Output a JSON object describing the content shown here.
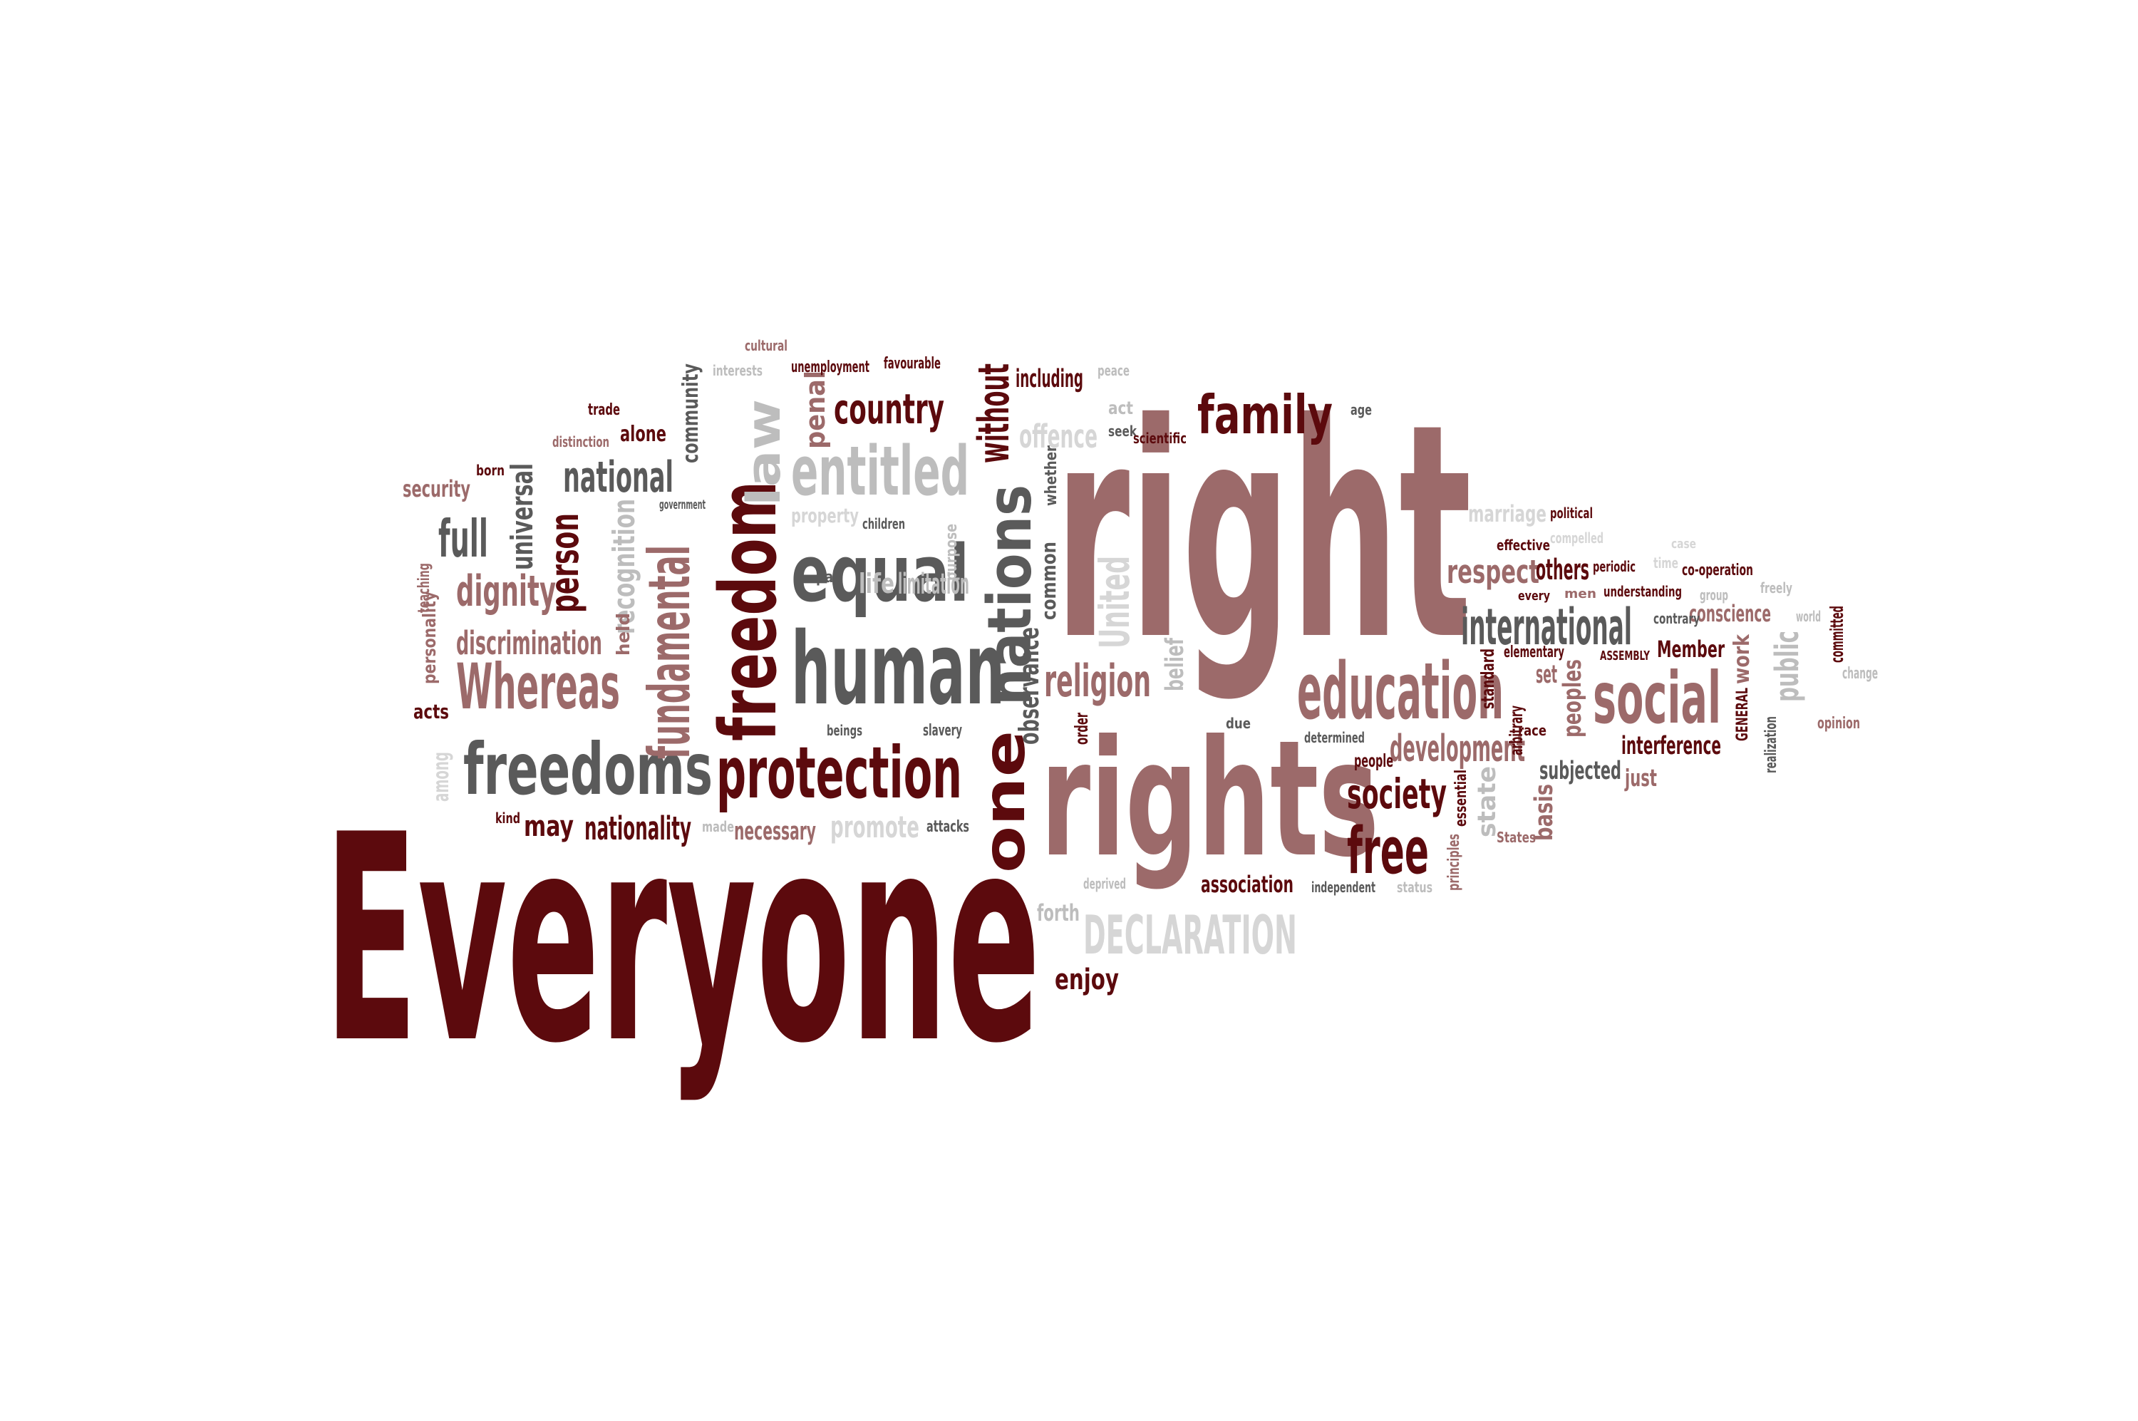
{
  "palette": {
    "background": "#ffffff",
    "dark_maroon": "#5c0a0d",
    "dark_gray": "#5a5a5a",
    "mauve": "#9c6a6a",
    "light_gray": "#bdbdbd",
    "pale_gray": "#d6d6d6"
  },
  "words": [
    {
      "text": "Everyone",
      "color": "dark_maroon"
    },
    {
      "text": "right",
      "color": "mauve"
    },
    {
      "text": "rights",
      "color": "mauve"
    },
    {
      "text": "human",
      "color": "dark_gray"
    },
    {
      "text": "protection",
      "color": "dark_maroon"
    },
    {
      "text": "freedoms",
      "color": "dark_gray"
    },
    {
      "text": "freedom",
      "color": "dark_maroon"
    },
    {
      "text": "equal",
      "color": "dark_gray"
    },
    {
      "text": "entitled",
      "color": "light_gray"
    },
    {
      "text": "education",
      "color": "mauve"
    },
    {
      "text": "social",
      "color": "mauve"
    },
    {
      "text": "Whereas",
      "color": "mauve"
    },
    {
      "text": "one",
      "color": "dark_maroon"
    },
    {
      "text": "nations",
      "color": "dark_gray"
    },
    {
      "text": "fundamental",
      "color": "mauve"
    },
    {
      "text": "law",
      "color": "light_gray"
    },
    {
      "text": "DECLARATION",
      "color": "pale_gray"
    },
    {
      "text": "free",
      "color": "dark_maroon"
    },
    {
      "text": "family",
      "color": "dark_maroon"
    },
    {
      "text": "international",
      "color": "dark_gray"
    },
    {
      "text": "country",
      "color": "dark_maroon"
    },
    {
      "text": "national",
      "color": "dark_gray"
    },
    {
      "text": "dignity",
      "color": "mauve"
    },
    {
      "text": "full",
      "color": "dark_gray"
    },
    {
      "text": "discrimination",
      "color": "mauve"
    },
    {
      "text": "person",
      "color": "dark_maroon"
    },
    {
      "text": "universal",
      "color": "dark_gray"
    },
    {
      "text": "recognition",
      "color": "light_gray"
    },
    {
      "text": "religion",
      "color": "mauve"
    },
    {
      "text": "society",
      "color": "dark_maroon"
    },
    {
      "text": "development",
      "color": "mauve"
    },
    {
      "text": "nationality",
      "color": "dark_maroon"
    },
    {
      "text": "necessary",
      "color": "mauve"
    },
    {
      "text": "promote",
      "color": "pale_gray"
    },
    {
      "text": "may",
      "color": "dark_maroon"
    },
    {
      "text": "without",
      "color": "dark_maroon"
    },
    {
      "text": "offence",
      "color": "pale_gray"
    },
    {
      "text": "including",
      "color": "dark_maroon"
    },
    {
      "text": "penal",
      "color": "mauve"
    },
    {
      "text": "community",
      "color": "dark_gray"
    },
    {
      "text": "United",
      "color": "pale_gray"
    },
    {
      "text": "observance",
      "color": "dark_gray"
    },
    {
      "text": "common",
      "color": "dark_gray"
    },
    {
      "text": "respect",
      "color": "mauve"
    },
    {
      "text": "others",
      "color": "dark_maroon"
    },
    {
      "text": "conscience",
      "color": "mauve"
    },
    {
      "text": "Member",
      "color": "dark_maroon"
    },
    {
      "text": "peoples",
      "color": "mauve"
    },
    {
      "text": "public",
      "color": "light_gray"
    },
    {
      "text": "work",
      "color": "mauve"
    },
    {
      "text": "interference",
      "color": "dark_maroon"
    },
    {
      "text": "subjected",
      "color": "dark_gray"
    },
    {
      "text": "just",
      "color": "mauve"
    },
    {
      "text": "state",
      "color": "light_gray"
    },
    {
      "text": "basis",
      "color": "mauve"
    },
    {
      "text": "association",
      "color": "dark_maroon"
    },
    {
      "text": "enjoy",
      "color": "dark_maroon"
    },
    {
      "text": "forth",
      "color": "light_gray"
    },
    {
      "text": "security",
      "color": "mauve"
    },
    {
      "text": "alone",
      "color": "dark_maroon"
    },
    {
      "text": "trade",
      "color": "dark_maroon"
    },
    {
      "text": "distinction",
      "color": "mauve"
    },
    {
      "text": "born",
      "color": "dark_maroon"
    },
    {
      "text": "personality",
      "color": "mauve"
    },
    {
      "text": "held",
      "color": "mauve"
    },
    {
      "text": "acts",
      "color": "dark_maroon"
    },
    {
      "text": "among",
      "color": "pale_gray"
    },
    {
      "text": "kind",
      "color": "dark_maroon"
    },
    {
      "text": "made",
      "color": "light_gray"
    },
    {
      "text": "attacks",
      "color": "dark_gray"
    },
    {
      "text": "property",
      "color": "pale_gray"
    },
    {
      "text": "children",
      "color": "dark_gray"
    },
    {
      "text": "life",
      "color": "light_gray"
    },
    {
      "text": "limitation",
      "color": "light_gray"
    },
    {
      "text": "pay",
      "color": "dark_gray"
    },
    {
      "text": "beings",
      "color": "dark_gray"
    },
    {
      "text": "slavery",
      "color": "dark_gray"
    },
    {
      "text": "government",
      "color": "dark_gray"
    },
    {
      "text": "cultural",
      "color": "mauve"
    },
    {
      "text": "interests",
      "color": "light_gray"
    },
    {
      "text": "unemployment",
      "color": "dark_maroon"
    },
    {
      "text": "favourable",
      "color": "dark_maroon"
    },
    {
      "text": "peace",
      "color": "light_gray"
    },
    {
      "text": "act",
      "color": "light_gray"
    },
    {
      "text": "seek",
      "color": "dark_gray"
    },
    {
      "text": "scientific",
      "color": "dark_maroon"
    },
    {
      "text": "age",
      "color": "dark_gray"
    },
    {
      "text": "marriage",
      "color": "pale_gray"
    },
    {
      "text": "political",
      "color": "dark_maroon"
    },
    {
      "text": "effective",
      "color": "dark_maroon"
    },
    {
      "text": "periodic",
      "color": "dark_maroon"
    },
    {
      "text": "co-operation",
      "color": "dark_maroon"
    },
    {
      "text": "understanding",
      "color": "dark_maroon"
    },
    {
      "text": "elementary",
      "color": "dark_maroon"
    },
    {
      "text": "race",
      "color": "dark_maroon"
    },
    {
      "text": "ASSEMBLY",
      "color": "dark_maroon"
    },
    {
      "text": "men",
      "color": "mauve"
    },
    {
      "text": "every",
      "color": "dark_maroon"
    },
    {
      "text": "set",
      "color": "mauve"
    },
    {
      "text": "standard",
      "color": "dark_maroon"
    },
    {
      "text": "arbitrary",
      "color": "dark_maroon"
    },
    {
      "text": "belief",
      "color": "light_gray"
    },
    {
      "text": "order",
      "color": "dark_maroon"
    },
    {
      "text": "due",
      "color": "dark_gray"
    },
    {
      "text": "determined",
      "color": "dark_gray"
    },
    {
      "text": "people",
      "color": "dark_maroon"
    },
    {
      "text": "essential",
      "color": "dark_maroon"
    },
    {
      "text": "States",
      "color": "mauve"
    },
    {
      "text": "principles",
      "color": "mauve"
    },
    {
      "text": "independent",
      "color": "dark_gray"
    },
    {
      "text": "status",
      "color": "light_gray"
    },
    {
      "text": "deprived",
      "color": "light_gray"
    },
    {
      "text": "GENERAL",
      "color": "dark_maroon"
    },
    {
      "text": "realization",
      "color": "dark_gray"
    },
    {
      "text": "committed",
      "color": "dark_maroon"
    },
    {
      "text": "opinion",
      "color": "mauve"
    },
    {
      "text": "change",
      "color": "light_gray"
    },
    {
      "text": "world",
      "color": "light_gray"
    },
    {
      "text": "freely",
      "color": "light_gray"
    },
    {
      "text": "group",
      "color": "light_gray"
    },
    {
      "text": "contrary",
      "color": "dark_gray"
    },
    {
      "text": "time",
      "color": "pale_gray"
    },
    {
      "text": "case",
      "color": "pale_gray"
    },
    {
      "text": "compelled",
      "color": "pale_gray"
    },
    {
      "text": "teaching",
      "color": "mauve"
    },
    {
      "text": "whether",
      "color": "dark_gray"
    },
    {
      "text": "purpose",
      "color": "light_gray"
    }
  ]
}
